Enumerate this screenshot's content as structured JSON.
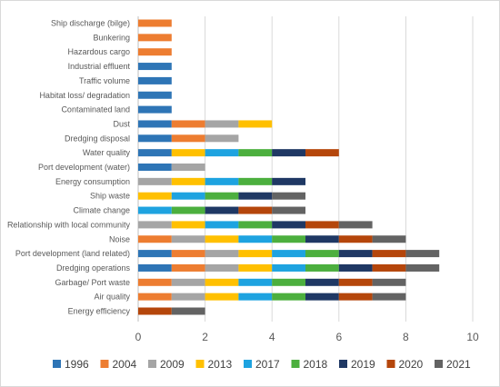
{
  "chart_data": {
    "type": "bar",
    "orientation": "horizontal",
    "stacked": true,
    "title": "",
    "xlabel": "",
    "ylabel": "",
    "xlim": [
      0,
      10
    ],
    "xticks": [
      "0",
      "2",
      "4",
      "6",
      "8",
      "10"
    ],
    "grid": "vertical",
    "legend_position": "bottom",
    "categories": [
      "Ship discharge (bilge)",
      "Bunkering",
      "Hazardous cargo",
      "Industrial effluent",
      "Traffic volume",
      "Habitat loss/ degradation",
      "Contaminated land",
      "Dust",
      "Dredging disposal",
      "Water quality",
      "Port development (water)",
      "Energy consumption",
      "Ship waste",
      "Climate change",
      "Relationship with local community",
      "Noise",
      "Port development (land related)",
      "Dredging operations",
      "Garbage/ Port waste",
      "Air quality",
      "Energy efficiency"
    ],
    "series": [
      {
        "name": "1996",
        "color": "#2E75B6",
        "values": [
          0,
          0,
          0,
          1,
          1,
          1,
          1,
          1,
          1,
          1,
          1,
          0,
          0,
          0,
          0,
          0,
          1,
          1,
          0,
          0,
          0
        ]
      },
      {
        "name": "2004",
        "color": "#ED7D31",
        "values": [
          1,
          1,
          1,
          0,
          0,
          0,
          0,
          1,
          1,
          0,
          0,
          0,
          0,
          0,
          0,
          1,
          1,
          1,
          1,
          1,
          0
        ]
      },
      {
        "name": "2009",
        "color": "#A5A5A5",
        "values": [
          0,
          0,
          0,
          0,
          0,
          0,
          0,
          1,
          1,
          0,
          1,
          1,
          0,
          0,
          1,
          1,
          1,
          1,
          1,
          1,
          0
        ]
      },
      {
        "name": "2013",
        "color": "#FFC000",
        "values": [
          0,
          0,
          0,
          0,
          0,
          0,
          0,
          1,
          0,
          1,
          0,
          1,
          1,
          0,
          1,
          1,
          1,
          1,
          1,
          1,
          0
        ]
      },
      {
        "name": "2017",
        "color": "#1EA3E0",
        "values": [
          0,
          0,
          0,
          0,
          0,
          0,
          0,
          0,
          0,
          1,
          0,
          1,
          1,
          1,
          1,
          1,
          1,
          1,
          1,
          1,
          0
        ]
      },
      {
        "name": "2018",
        "color": "#4CAF3E",
        "values": [
          0,
          0,
          0,
          0,
          0,
          0,
          0,
          0,
          0,
          1,
          0,
          1,
          1,
          1,
          1,
          1,
          1,
          1,
          1,
          1,
          0
        ]
      },
      {
        "name": "2019",
        "color": "#1F3864",
        "values": [
          0,
          0,
          0,
          0,
          0,
          0,
          0,
          0,
          0,
          1,
          0,
          1,
          1,
          1,
          1,
          1,
          1,
          1,
          1,
          1,
          0
        ]
      },
      {
        "name": "2020",
        "color": "#B5460B",
        "values": [
          0,
          0,
          0,
          0,
          0,
          0,
          0,
          0,
          0,
          1,
          0,
          0,
          0,
          1,
          1,
          1,
          1,
          1,
          1,
          1,
          1
        ]
      },
      {
        "name": "2021",
        "color": "#636363",
        "values": [
          0,
          0,
          0,
          0,
          0,
          0,
          0,
          0,
          0,
          0,
          0,
          0,
          1,
          1,
          1,
          1,
          1,
          1,
          1,
          1,
          1
        ]
      }
    ]
  }
}
